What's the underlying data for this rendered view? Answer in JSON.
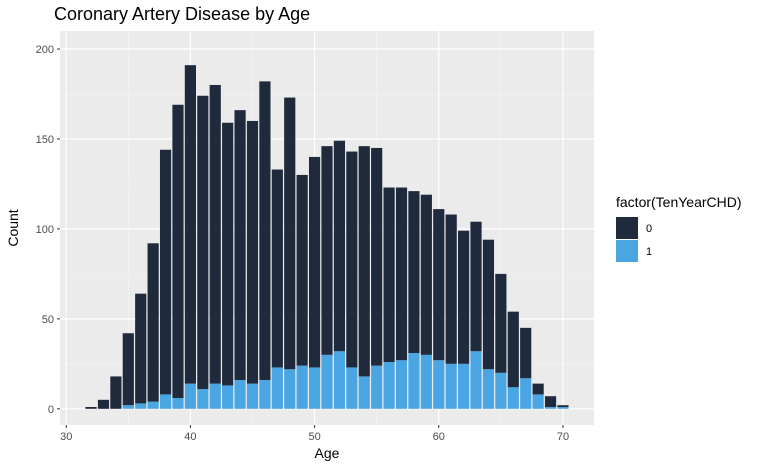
{
  "chart_data": {
    "type": "bar",
    "stacked": true,
    "title": "Coronary Artery Disease by Age",
    "xlabel": "Age",
    "ylabel": "Count",
    "xlim": [
      29.5,
      72.5
    ],
    "ylim": [
      -9,
      210
    ],
    "x_ticks": [
      30,
      40,
      50,
      60,
      70
    ],
    "y_ticks": [
      0,
      50,
      100,
      150,
      200
    ],
    "grid": true,
    "legend": {
      "title": "factor(TenYearCHD)",
      "position": "right",
      "entries": [
        {
          "label": "0",
          "color": "#1f2a3c"
        },
        {
          "label": "1",
          "color": "#4aa6e3"
        }
      ]
    },
    "x": [
      32,
      33,
      34,
      35,
      36,
      37,
      38,
      39,
      40,
      41,
      42,
      43,
      44,
      45,
      46,
      47,
      48,
      49,
      50,
      51,
      52,
      53,
      54,
      55,
      56,
      57,
      58,
      59,
      60,
      61,
      62,
      63,
      64,
      65,
      66,
      67,
      68,
      69,
      70
    ],
    "series": [
      {
        "name": "0",
        "color": "#1f2a3c",
        "values": [
          1,
          5,
          18,
          40,
          61,
          88,
          136,
          163,
          177,
          163,
          166,
          146,
          150,
          146,
          166,
          110,
          151,
          106,
          117,
          116,
          117,
          120,
          128,
          121,
          97,
          96,
          90,
          89,
          84,
          83,
          74,
          72,
          72,
          55,
          42,
          28,
          6,
          6,
          1
        ]
      },
      {
        "name": "1",
        "color": "#4aa6e3",
        "values": [
          0,
          0,
          0,
          2,
          3,
          4,
          8,
          6,
          14,
          11,
          14,
          13,
          16,
          14,
          16,
          23,
          22,
          24,
          23,
          30,
          32,
          23,
          18,
          24,
          26,
          27,
          31,
          30,
          27,
          25,
          25,
          32,
          22,
          20,
          12,
          17,
          8,
          1,
          1
        ]
      }
    ]
  }
}
